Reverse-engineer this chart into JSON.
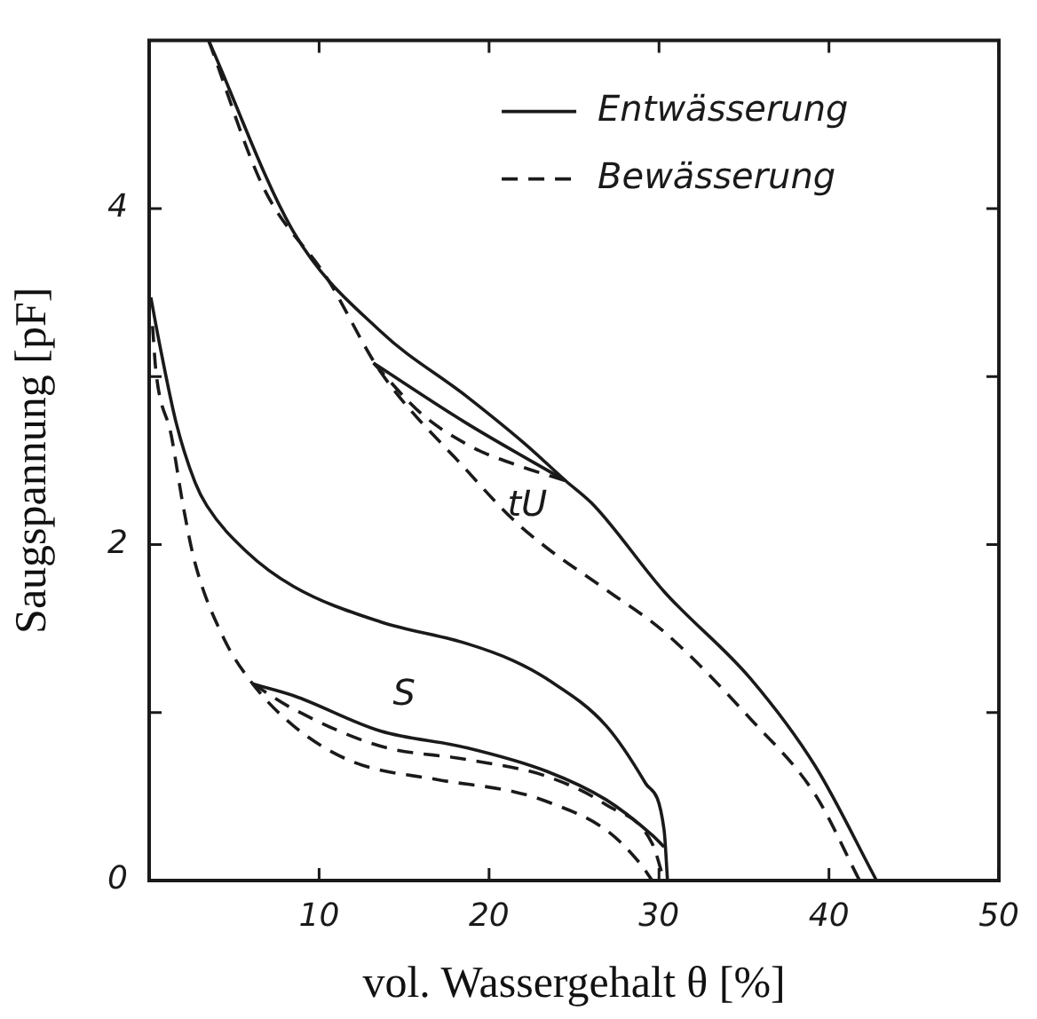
{
  "chart_data": {
    "type": "line",
    "xlabel": "vol. Wassergehalt θ [%]",
    "ylabel": "Saugspannung [pF]",
    "xlim": [
      0,
      50
    ],
    "ylim": [
      0,
      5
    ],
    "xticks": [
      {
        "value": 0,
        "label": null
      },
      10,
      20,
      30,
      40,
      50
    ],
    "yticks": [
      0,
      {
        "value": 1,
        "label": null
      },
      2,
      {
        "value": 3,
        "label": null
      },
      4,
      {
        "value": 5,
        "label": null
      }
    ],
    "grid": false,
    "legend": "top right",
    "marker": "none",
    "annotations": [
      "tU",
      "S"
    ],
    "series": [
      {
        "name": "Entwässerung",
        "color": "#1a1a1a",
        "line_style": "solid",
        "x": [
          3.5,
          8.5,
          13.6,
          18.7,
          22.1,
          24.5,
          26.2,
          30.3,
          35.4,
          39.2,
          42.8
        ],
        "values": [
          5,
          3.86,
          3.27,
          2.88,
          2.6,
          2.38,
          2.23,
          1.72,
          1.2,
          0.68,
          0
        ]
      },
      {
        "name": "Bewässerung",
        "color": "#1a1a1a",
        "line_style": "dashed",
        "x": [
          3.5,
          6.7,
          10.5,
          13.6,
          18.7,
          21.4,
          23.4,
          26.9,
          30.3,
          35.4,
          39.2,
          41.8
        ],
        "values": [
          5,
          4.13,
          3.58,
          3.03,
          2.44,
          2.15,
          1.98,
          1.73,
          1.48,
          0.96,
          0.51,
          0
        ]
      },
      {
        "color": "#1a1a1a",
        "line_style": "solid",
        "x": [
          13.2,
          18.7,
          24.5
        ],
        "values": [
          3.08,
          2.72,
          2.38
        ]
      },
      {
        "color": "#1a1a1a",
        "line_style": "dashed",
        "x": [
          13.2,
          16,
          19,
          22,
          24.5
        ],
        "values": [
          3.08,
          2.78,
          2.58,
          2.46,
          2.38
        ]
      },
      {
        "color": "#1a1a1a",
        "line_style": "solid",
        "x": [
          0.1,
          0.6,
          1.6,
          2.7,
          3.4,
          5.7,
          8.5,
          13.6,
          18.7,
          21.4,
          23.4,
          26.9,
          29.2,
          30.3,
          30.5
        ],
        "values": [
          3.47,
          3.2,
          2.72,
          2.37,
          2.23,
          1.96,
          1.75,
          1.54,
          1.41,
          1.31,
          1.2,
          0.92,
          0.58,
          0.3,
          0
        ]
      },
      {
        "color": "#1a1a1a",
        "line_style": "dashed",
        "x": [
          0.2,
          0.4,
          1.3,
          2,
          2.7,
          4.4,
          6.1,
          8.5,
          11.9,
          17,
          21.4,
          23.4,
          26.9,
          28.9,
          29.6
        ],
        "values": [
          3.3,
          3.03,
          2.65,
          2.23,
          1.89,
          1.44,
          1.17,
          0.92,
          0.71,
          0.6,
          0.53,
          0.47,
          0.3,
          0.1,
          0
        ]
      },
      {
        "color": "#1a1a1a",
        "line_style": "solid",
        "x": [
          6.1,
          8.5,
          13.6,
          18.7,
          23.4,
          26.9,
          29.6,
          30.3
        ],
        "values": [
          1.17,
          1.1,
          0.89,
          0.79,
          0.65,
          0.48,
          0.27,
          0.2
        ]
      },
      {
        "color": "#1a1a1a",
        "line_style": "dashed",
        "x": [
          6.1,
          8.5,
          13.6,
          18.7,
          23.4,
          26.9,
          29.6,
          30.3
        ],
        "values": [
          1.17,
          1.02,
          0.8,
          0.72,
          0.62,
          0.45,
          0.22,
          0
        ]
      }
    ]
  }
}
